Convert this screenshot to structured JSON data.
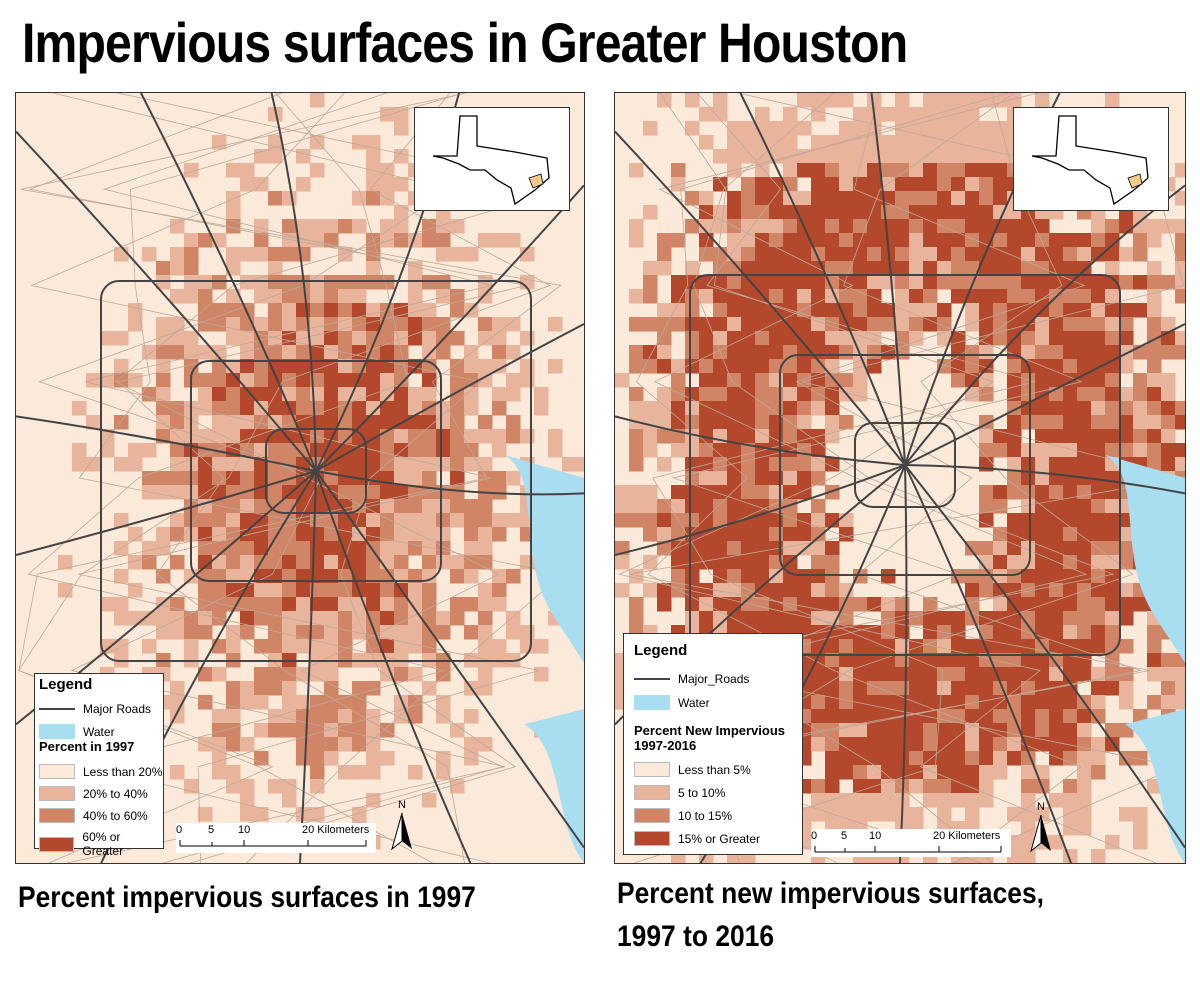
{
  "title": "Impervious surfaces in Greater Houston",
  "colors": {
    "background": "#fbe9da",
    "class1": "#fbe9da",
    "class2": "#e8b49c",
    "class3": "#d08566",
    "class4": "#b3482c",
    "water": "#a8def0",
    "road": "#444444",
    "county_line": "#bfa898"
  },
  "left_map": {
    "caption": "Percent impervious surfaces in 1997",
    "legend": {
      "title": "Legend",
      "road_label": "Major Roads",
      "water_label": "Water",
      "section_title": "Percent in 1997",
      "classes": [
        "Less than 20%",
        "20% to 40%",
        "40% to 60%",
        "60% or Greater"
      ]
    },
    "scale": {
      "ticks": [
        "0",
        "5",
        "10",
        "20 Kilometers"
      ]
    },
    "north_label": "N"
  },
  "right_map": {
    "caption_line1": "Percent new impervious surfaces,",
    "caption_line2": "1997 to 2016",
    "legend": {
      "title": "Legend",
      "road_label": "Major_Roads",
      "water_label": "Water",
      "section_title_line1": "Percent New Impervious",
      "section_title_line2": "1997-2016",
      "classes": [
        "Less than 5%",
        "5 to 10%",
        "10 to 15%",
        "15% or Greater"
      ]
    },
    "scale": {
      "ticks": [
        "0",
        "5",
        "10",
        "20 Kilometers"
      ]
    },
    "north_label": "N"
  }
}
